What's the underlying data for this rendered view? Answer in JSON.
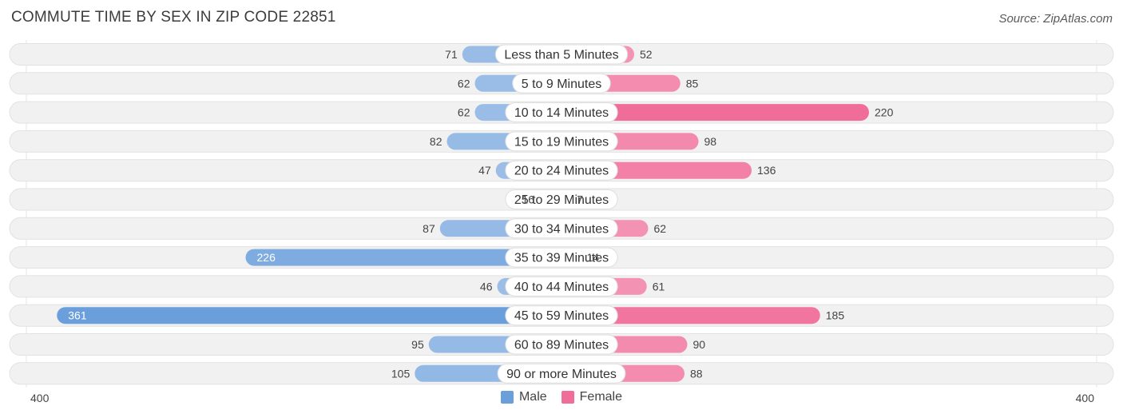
{
  "title": "COMMUTE TIME BY SEX IN ZIP CODE 22851",
  "source": "Source: ZipAtlas.com",
  "colors": {
    "male": "#6a9fdc",
    "male_light": "#a3c3e8",
    "female": "#f06d99",
    "female_light": "#f5a0bd",
    "track": "#f1f1f1"
  },
  "legend": {
    "male": "Male",
    "female": "Female"
  },
  "axis": {
    "left_label": "400",
    "right_label": "400"
  },
  "chart_data": {
    "type": "bar",
    "orientation": "horizontal-diverging",
    "categories": [
      "Less than 5 Minutes",
      "5 to 9 Minutes",
      "10 to 14 Minutes",
      "15 to 19 Minutes",
      "20 to 24 Minutes",
      "25 to 29 Minutes",
      "30 to 34 Minutes",
      "35 to 39 Minutes",
      "40 to 44 Minutes",
      "45 to 59 Minutes",
      "60 to 89 Minutes",
      "90 or more Minutes"
    ],
    "series": [
      {
        "name": "Male",
        "values": [
          71,
          62,
          62,
          82,
          47,
          16,
          87,
          226,
          46,
          361,
          95,
          105
        ]
      },
      {
        "name": "Female",
        "values": [
          52,
          85,
          220,
          98,
          136,
          7,
          62,
          14,
          61,
          185,
          90,
          88
        ]
      }
    ],
    "xlim": [
      -400,
      400
    ],
    "legend_position": "bottom-center"
  }
}
